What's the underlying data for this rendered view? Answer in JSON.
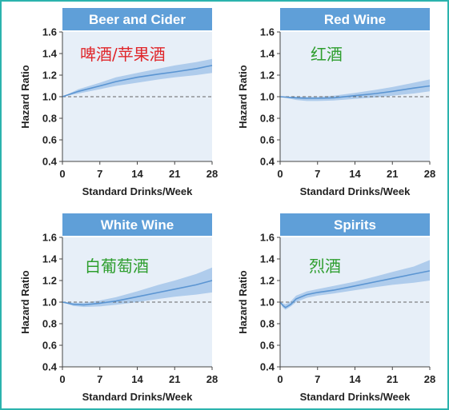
{
  "colors": {
    "header": "#5f9fd8",
    "plot_bg": "#e7eff8",
    "band": "#a9c8ea",
    "line": "#5b95d2",
    "reference": "#666666",
    "red_label": "#e0262a",
    "green_label": "#2e9e2e"
  },
  "chart_data": [
    {
      "type": "line",
      "title": "Beer and Cider",
      "annotation": "啤酒/苹果酒",
      "annotation_color": "red",
      "xlabel": "Standard Drinks/Week",
      "ylabel": "Hazard Ratio",
      "xlim": [
        0,
        28
      ],
      "ylim": [
        0.4,
        1.6
      ],
      "xticks": [
        0,
        7,
        14,
        21,
        28
      ],
      "yticks": [
        0.4,
        0.6,
        0.8,
        1.0,
        1.2,
        1.4,
        1.6
      ],
      "reference_line": 1.0,
      "x": [
        0,
        3,
        7,
        10,
        14,
        18,
        21,
        25,
        28
      ],
      "y": [
        1.0,
        1.05,
        1.1,
        1.14,
        1.18,
        1.21,
        1.23,
        1.26,
        1.29
      ],
      "lower": [
        1.0,
        1.03,
        1.07,
        1.1,
        1.13,
        1.16,
        1.18,
        1.2,
        1.22
      ],
      "upper": [
        1.0,
        1.07,
        1.13,
        1.18,
        1.22,
        1.26,
        1.29,
        1.32,
        1.35
      ]
    },
    {
      "type": "line",
      "title": "Red Wine",
      "annotation": "红酒",
      "annotation_color": "green",
      "xlabel": "Standard Drinks/Week",
      "ylabel": "Hazard Ratio",
      "xlim": [
        0,
        28
      ],
      "ylim": [
        0.4,
        1.6
      ],
      "xticks": [
        0,
        7,
        14,
        21,
        28
      ],
      "yticks": [
        0.4,
        0.6,
        0.8,
        1.0,
        1.2,
        1.4,
        1.6
      ],
      "reference_line": 1.0,
      "x": [
        0,
        3,
        5,
        7,
        10,
        14,
        18,
        21,
        25,
        28
      ],
      "y": [
        1.0,
        0.99,
        0.985,
        0.985,
        0.99,
        1.01,
        1.03,
        1.05,
        1.08,
        1.1
      ],
      "lower": [
        1.0,
        0.97,
        0.96,
        0.96,
        0.965,
        0.98,
        0.995,
        1.01,
        1.03,
        1.05
      ],
      "upper": [
        1.0,
        1.0,
        1.0,
        1.0,
        1.01,
        1.035,
        1.065,
        1.09,
        1.13,
        1.16
      ]
    },
    {
      "type": "line",
      "title": "White Wine",
      "annotation": "白葡萄酒",
      "annotation_color": "green",
      "xlabel": "Standard Drinks/Week",
      "ylabel": "Hazard Ratio",
      "xlim": [
        0,
        28
      ],
      "ylim": [
        0.4,
        1.6
      ],
      "xticks": [
        0,
        7,
        14,
        21,
        28
      ],
      "yticks": [
        0.4,
        0.6,
        0.8,
        1.0,
        1.2,
        1.4,
        1.6
      ],
      "reference_line": 1.0,
      "x": [
        0,
        2,
        4,
        7,
        10,
        14,
        18,
        21,
        25,
        28
      ],
      "y": [
        1.0,
        0.98,
        0.975,
        0.99,
        1.01,
        1.05,
        1.09,
        1.12,
        1.16,
        1.2
      ],
      "lower": [
        1.0,
        0.965,
        0.955,
        0.96,
        0.975,
        1.0,
        1.03,
        1.05,
        1.07,
        1.09
      ],
      "upper": [
        1.0,
        0.995,
        0.995,
        1.015,
        1.045,
        1.1,
        1.16,
        1.2,
        1.26,
        1.32
      ]
    },
    {
      "type": "line",
      "title": "Spirits",
      "annotation": "烈酒",
      "annotation_color": "green",
      "xlabel": "Standard Drinks/Week",
      "ylabel": "Hazard Ratio",
      "xlim": [
        0,
        28
      ],
      "ylim": [
        0.4,
        1.6
      ],
      "xticks": [
        0,
        7,
        14,
        21,
        28
      ],
      "yticks": [
        0.4,
        0.6,
        0.8,
        1.0,
        1.2,
        1.4,
        1.6
      ],
      "reference_line": 1.0,
      "x": [
        0,
        0.5,
        1,
        2,
        3,
        5,
        7,
        10,
        14,
        18,
        21,
        25,
        28
      ],
      "y": [
        1.0,
        0.97,
        0.95,
        0.98,
        1.03,
        1.07,
        1.09,
        1.11,
        1.15,
        1.19,
        1.22,
        1.26,
        1.29
      ],
      "lower": [
        1.0,
        0.95,
        0.93,
        0.96,
        1.0,
        1.04,
        1.06,
        1.08,
        1.11,
        1.14,
        1.16,
        1.18,
        1.2
      ],
      "upper": [
        1.0,
        0.99,
        0.98,
        1.01,
        1.06,
        1.1,
        1.12,
        1.15,
        1.19,
        1.24,
        1.28,
        1.33,
        1.39
      ]
    }
  ]
}
